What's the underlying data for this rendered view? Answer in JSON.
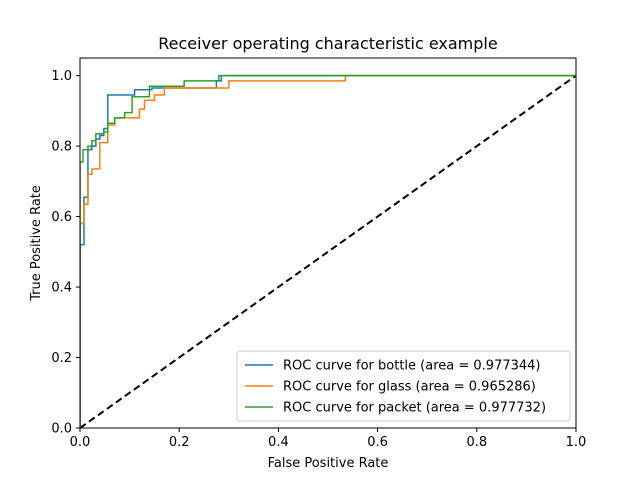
{
  "chart_data": {
    "type": "line",
    "title": "Receiver operating characteristic example",
    "xlabel": "False Positive Rate",
    "ylabel": "True Positive Rate",
    "xlim": [
      0,
      1
    ],
    "ylim": [
      0,
      1.05
    ],
    "xticks": [
      0,
      0.2,
      0.4,
      0.6,
      0.8,
      1.0
    ],
    "xtick_labels": [
      "0.0",
      "0.2",
      "0.4",
      "0.6",
      "0.8",
      "1.0"
    ],
    "yticks": [
      0,
      0.2,
      0.4,
      0.6,
      0.8,
      1.0
    ],
    "ytick_labels": [
      "0.0",
      "0.2",
      "0.4",
      "0.6",
      "0.8",
      "1.0"
    ],
    "grid": false,
    "legend_position": "lower-right",
    "series": [
      {
        "name": "ROC curve for bottle (area = 0.977344)",
        "color": "#1f77b4",
        "x": [
          0,
          0,
          0.008,
          0.008,
          0.016,
          0.016,
          0.024,
          0.024,
          0.032,
          0.032,
          0.04,
          0.04,
          0.048,
          0.048,
          0.056,
          0.056,
          0.11,
          0.11,
          0.145,
          0.145,
          0.275,
          0.275,
          0.285,
          0.285,
          1.0
        ],
        "y": [
          0,
          0.52,
          0.52,
          0.655,
          0.655,
          0.79,
          0.79,
          0.8,
          0.8,
          0.82,
          0.82,
          0.83,
          0.83,
          0.85,
          0.85,
          0.945,
          0.945,
          0.96,
          0.96,
          0.965,
          0.965,
          0.985,
          0.985,
          1.0,
          1.0
        ]
      },
      {
        "name": "ROC curve for glass (area = 0.965286)",
        "color": "#ff7f0e",
        "x": [
          0,
          0,
          0.008,
          0.008,
          0.016,
          0.016,
          0.024,
          0.024,
          0.04,
          0.04,
          0.056,
          0.056,
          0.07,
          0.07,
          0.09,
          0.09,
          0.12,
          0.12,
          0.13,
          0.13,
          0.15,
          0.15,
          0.17,
          0.17,
          0.3,
          0.3,
          0.535,
          0.535,
          1.0
        ],
        "y": [
          0,
          0.58,
          0.58,
          0.635,
          0.635,
          0.72,
          0.72,
          0.735,
          0.735,
          0.81,
          0.81,
          0.86,
          0.86,
          0.88,
          0.88,
          0.88,
          0.88,
          0.905,
          0.905,
          0.93,
          0.93,
          0.945,
          0.945,
          0.965,
          0.965,
          0.985,
          0.985,
          1.0,
          1.0
        ]
      },
      {
        "name": "ROC curve for packet (area = 0.977732)",
        "color": "#2ca02c",
        "x": [
          0,
          0,
          0.006,
          0.006,
          0.016,
          0.016,
          0.024,
          0.024,
          0.032,
          0.032,
          0.048,
          0.048,
          0.056,
          0.056,
          0.07,
          0.07,
          0.09,
          0.09,
          0.105,
          0.105,
          0.14,
          0.14,
          0.21,
          0.21,
          0.28,
          0.28,
          1.0
        ],
        "y": [
          0,
          0.755,
          0.755,
          0.79,
          0.79,
          0.8,
          0.8,
          0.815,
          0.815,
          0.835,
          0.835,
          0.84,
          0.84,
          0.865,
          0.865,
          0.88,
          0.88,
          0.895,
          0.895,
          0.94,
          0.94,
          0.97,
          0.97,
          0.985,
          0.985,
          1.0,
          1.0
        ]
      },
      {
        "name": "",
        "color": "#000000",
        "style": "dashed",
        "x": [
          0,
          1
        ],
        "y": [
          0,
          1
        ]
      }
    ]
  }
}
